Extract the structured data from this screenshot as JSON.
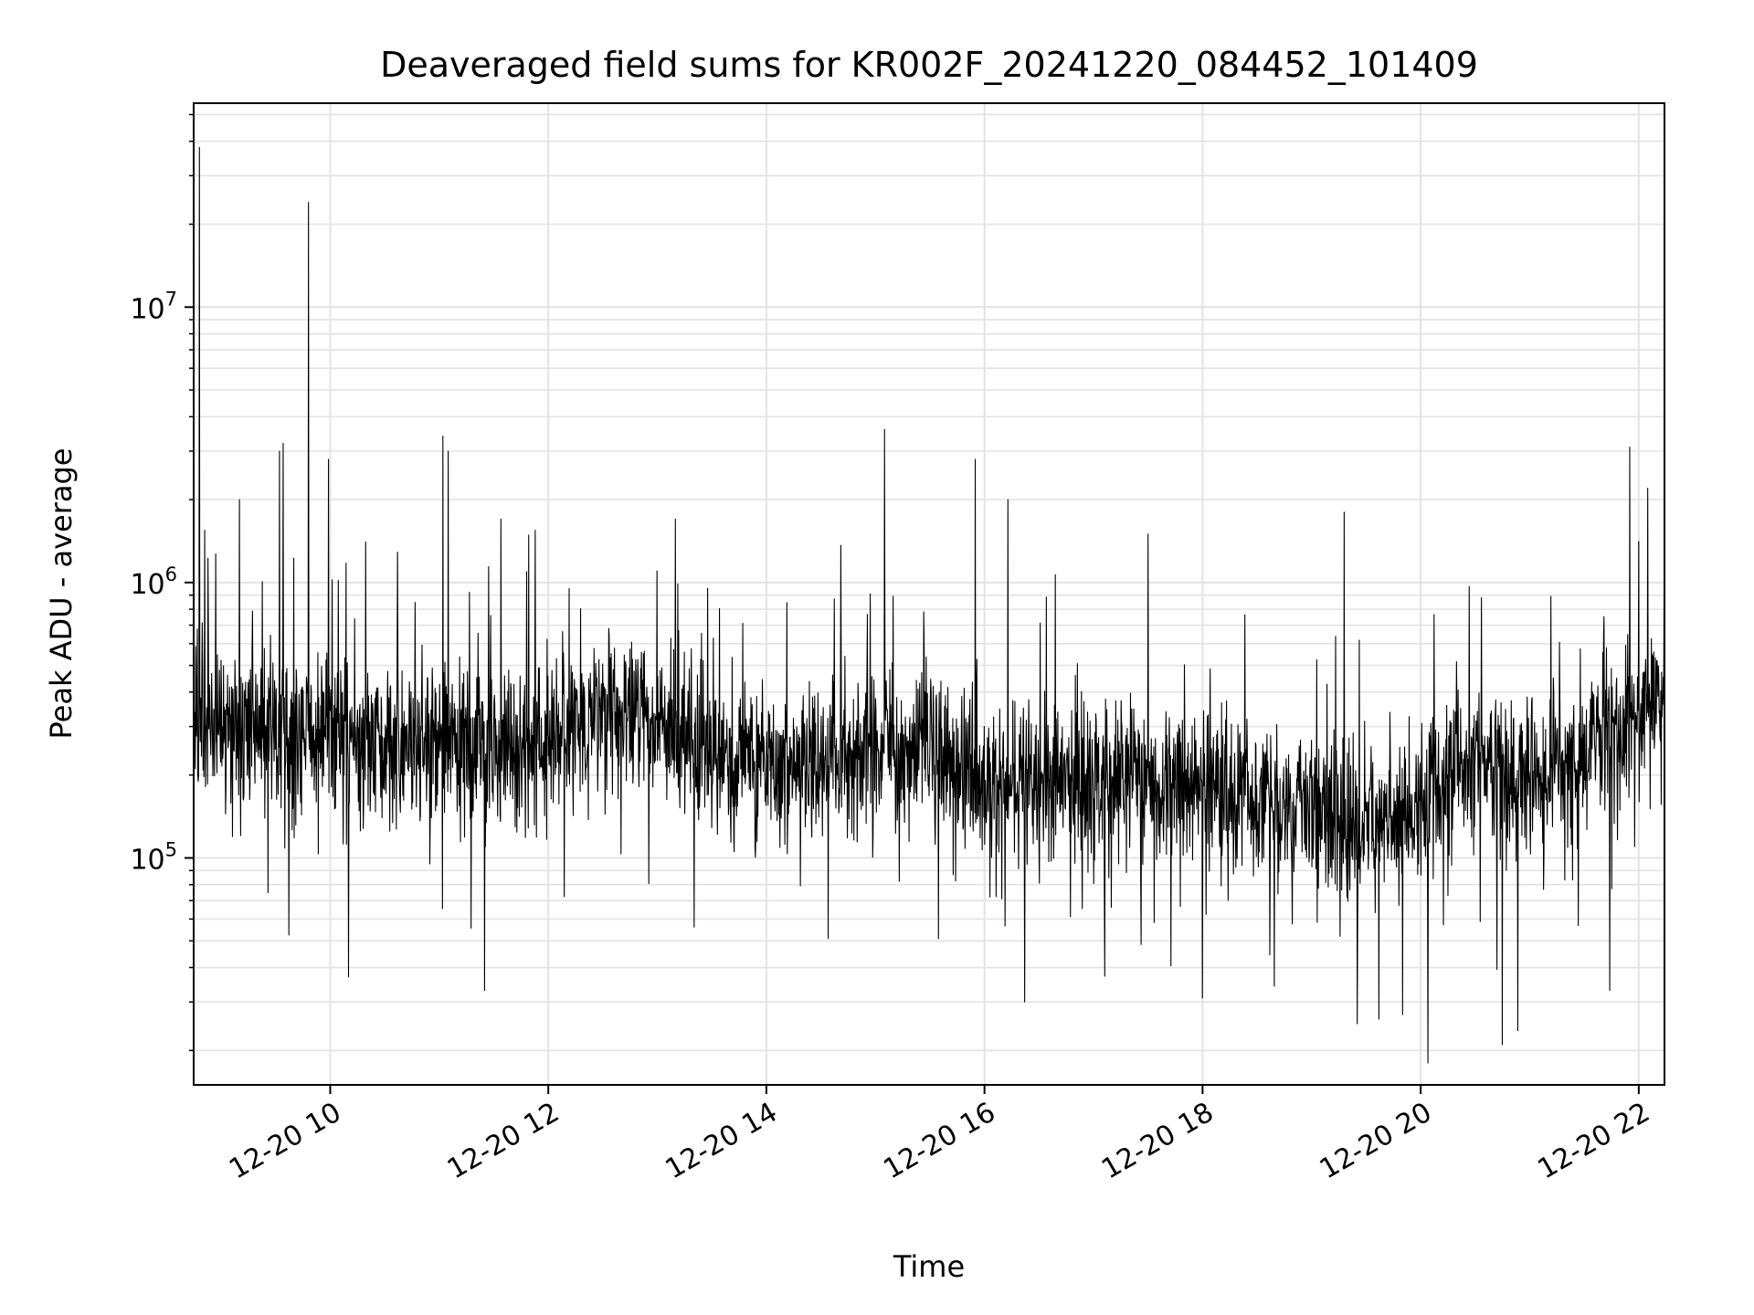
{
  "chart_data": {
    "type": "line",
    "title": "Deaveraged field sums for KR002F_20241220_084452_101409",
    "xlabel": "Time",
    "ylabel": "Peak ADU - average",
    "x_start": "2024-12-20T08:44:52",
    "x_end": "2024-12-20T22:14:09",
    "xlim": [
      "2024-12-20T08:44:52",
      "2024-12-20T22:14:09"
    ],
    "ylim": [
      15000,
      55000000
    ],
    "y_scale": "log",
    "grid": true,
    "x_ticks": [
      {
        "value": "2024-12-20T10:00",
        "label": "12-20 10"
      },
      {
        "value": "2024-12-20T12:00",
        "label": "12-20 12"
      },
      {
        "value": "2024-12-20T14:00",
        "label": "12-20 14"
      },
      {
        "value": "2024-12-20T16:00",
        "label": "12-20 16"
      },
      {
        "value": "2024-12-20T18:00",
        "label": "12-20 18"
      },
      {
        "value": "2024-12-20T20:00",
        "label": "12-20 20"
      },
      {
        "value": "2024-12-20T22:00",
        "label": "12-20 22"
      }
    ],
    "y_ticks": [
      {
        "value": 100000,
        "base": "10",
        "exp": "5"
      },
      {
        "value": 1000000,
        "base": "10",
        "exp": "6"
      },
      {
        "value": 10000000,
        "base": "10",
        "exp": "7"
      }
    ],
    "series": [
      {
        "color": "#000000",
        "trend": [
          [
            "2024-12-20T08:45",
            320000
          ],
          [
            "2024-12-20T09:00",
            300000
          ],
          [
            "2024-12-20T09:30",
            290000
          ],
          [
            "2024-12-20T10:00",
            270000
          ],
          [
            "2024-12-20T10:30",
            240000
          ],
          [
            "2024-12-20T11:00",
            250000
          ],
          [
            "2024-12-20T11:30",
            240000
          ],
          [
            "2024-12-20T12:00",
            270000
          ],
          [
            "2024-12-20T12:30",
            330000
          ],
          [
            "2024-12-20T13:00",
            300000
          ],
          [
            "2024-12-20T13:30",
            250000
          ],
          [
            "2024-12-20T14:00",
            220000
          ],
          [
            "2024-12-20T14:30",
            210000
          ],
          [
            "2024-12-20T15:00",
            250000
          ],
          [
            "2024-12-20T15:30",
            260000
          ],
          [
            "2024-12-20T16:00",
            190000
          ],
          [
            "2024-12-20T16:30",
            180000
          ],
          [
            "2024-12-20T17:00",
            190000
          ],
          [
            "2024-12-20T17:30",
            200000
          ],
          [
            "2024-12-20T18:00",
            170000
          ],
          [
            "2024-12-20T18:30",
            160000
          ],
          [
            "2024-12-20T19:00",
            150000
          ],
          [
            "2024-12-20T19:30",
            130000
          ],
          [
            "2024-12-20T20:00",
            150000
          ],
          [
            "2024-12-20T20:30",
            260000
          ],
          [
            "2024-12-20T21:00",
            190000
          ],
          [
            "2024-12-20T21:30",
            250000
          ],
          [
            "2024-12-20T22:00",
            320000
          ],
          [
            "2024-12-20T22:14",
            430000
          ]
        ],
        "spikes": [
          [
            "2024-12-20T08:48",
            38000000
          ],
          [
            "2024-12-20T09:10",
            2000000
          ],
          [
            "2024-12-20T09:32",
            3000000
          ],
          [
            "2024-12-20T09:34",
            3200000
          ],
          [
            "2024-12-20T09:48",
            24000000
          ],
          [
            "2024-12-20T09:59",
            2800000
          ],
          [
            "2024-12-20T11:02",
            3400000
          ],
          [
            "2024-12-20T11:05",
            3000000
          ],
          [
            "2024-12-20T11:34",
            1700000
          ],
          [
            "2024-12-20T13:10",
            1700000
          ],
          [
            "2024-12-20T15:05",
            3600000
          ],
          [
            "2024-12-20T15:55",
            2800000
          ],
          [
            "2024-12-20T16:13",
            2000000
          ],
          [
            "2024-12-20T17:30",
            1500000
          ],
          [
            "2024-12-20T19:18",
            1800000
          ],
          [
            "2024-12-20T21:55",
            3100000
          ],
          [
            "2024-12-20T22:05",
            2200000
          ]
        ],
        "dips": [
          [
            "2024-12-20T10:10",
            37000
          ],
          [
            "2024-12-20T11:25",
            33000
          ],
          [
            "2024-12-20T16:22",
            30000
          ],
          [
            "2024-12-20T18:00",
            31000
          ],
          [
            "2024-12-20T19:25",
            25000
          ],
          [
            "2024-12-20T19:37",
            26000
          ],
          [
            "2024-12-20T19:50",
            27000
          ],
          [
            "2024-12-20T20:04",
            18000
          ],
          [
            "2024-12-20T20:45",
            21000
          ],
          [
            "2024-12-20T21:44",
            33000
          ]
        ]
      }
    ]
  }
}
